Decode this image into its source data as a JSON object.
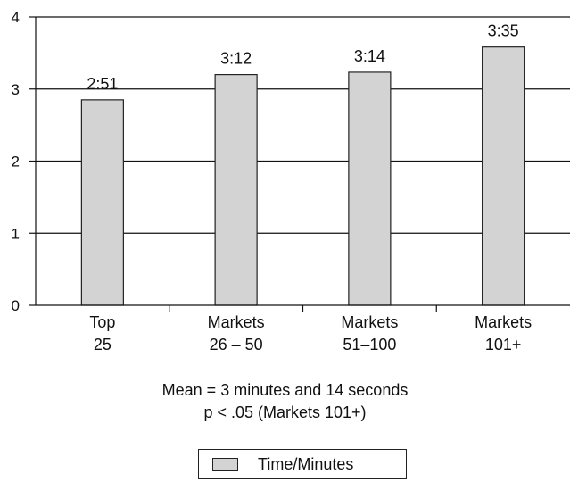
{
  "chart_data": {
    "type": "bar",
    "categories": [
      [
        "Top",
        "25"
      ],
      [
        "Markets",
        "26 – 50"
      ],
      [
        "Markets",
        "51–100"
      ],
      [
        "Markets",
        "101+"
      ]
    ],
    "series": [
      {
        "name": "Time/Minutes",
        "values": [
          2.85,
          3.2,
          3.233,
          3.583
        ],
        "data_labels": [
          "2:51",
          "3:12",
          "3:14",
          "3:35"
        ],
        "color": "#d3d3d3"
      }
    ],
    "ylim": [
      0,
      4
    ],
    "yticks": [
      "0",
      "1",
      "2",
      "3",
      "4"
    ],
    "grid": true,
    "legend_position": "bottom",
    "notes": [
      "Mean = 3 minutes and 14 seconds",
      "p < .05 (Markets 101+)"
    ]
  },
  "colors": {
    "bar_fill": "#d3d3d3",
    "bar_stroke": "#222222",
    "gridline": "#111111",
    "axis": "#111111"
  }
}
